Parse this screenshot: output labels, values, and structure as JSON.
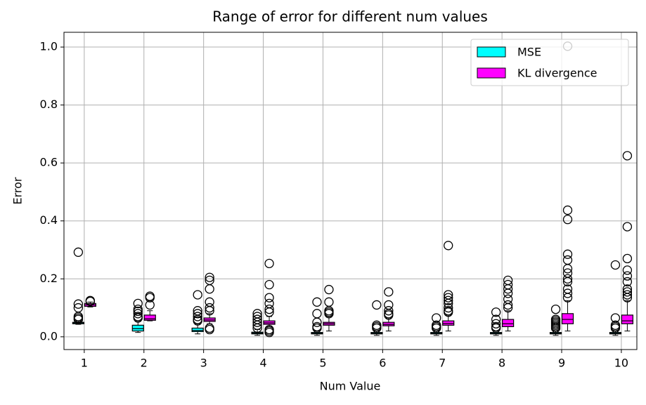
{
  "chart_data": {
    "type": "boxplot",
    "title": "Range of error for different num values",
    "xlabel": "Num Value",
    "ylabel": "Error",
    "xlim": [
      0.66,
      10.26
    ],
    "xticks": [
      1,
      2,
      3,
      4,
      5,
      6,
      7,
      8,
      9,
      10
    ],
    "ylim": [
      -0.044,
      1.051
    ],
    "yticks": [
      {
        "value": 0,
        "label": "0.0"
      },
      0.2,
      0.4,
      0.6,
      0.8,
      {
        "value": 1,
        "label": "1.0"
      }
    ],
    "grid": true,
    "legend": "upper right",
    "series": [
      {
        "name": "MSE",
        "color": "#00ffff",
        "boxes": [
          {
            "whislo": 0.043,
            "q1": 0.045,
            "med": 0.048,
            "q3": 0.05,
            "whishi": 0.055,
            "fliers": [
              0.292,
              0.113,
              0.1,
              0.07,
              0.065,
              0.06
            ]
          },
          {
            "whislo": 0.015,
            "q1": 0.02,
            "med": 0.028,
            "q3": 0.04,
            "whishi": 0.055,
            "fliers": [
              0.115,
              0.095,
              0.088,
              0.08,
              0.07,
              0.065
            ]
          },
          {
            "whislo": 0.01,
            "q1": 0.018,
            "med": 0.022,
            "q3": 0.03,
            "whishi": 0.045,
            "fliers": [
              0.145,
              0.09,
              0.08,
              0.07,
              0.06,
              0.055
            ]
          },
          {
            "whislo": 0.005,
            "q1": 0.01,
            "med": 0.013,
            "q3": 0.016,
            "whishi": 0.025,
            "fliers": [
              0.08,
              0.07,
              0.06,
              0.05,
              0.04,
              0.03
            ]
          },
          {
            "whislo": 0.005,
            "q1": 0.01,
            "med": 0.012,
            "q3": 0.015,
            "whishi": 0.02,
            "fliers": [
              0.12,
              0.08,
              0.05,
              0.035,
              0.03
            ]
          },
          {
            "whislo": 0.005,
            "q1": 0.01,
            "med": 0.012,
            "q3": 0.015,
            "whishi": 0.02,
            "fliers": [
              0.11,
              0.04,
              0.035,
              0.03
            ]
          },
          {
            "whislo": 0.005,
            "q1": 0.01,
            "med": 0.012,
            "q3": 0.015,
            "whishi": 0.02,
            "fliers": [
              0.065,
              0.04,
              0.035,
              0.03
            ]
          },
          {
            "whislo": 0.005,
            "q1": 0.01,
            "med": 0.012,
            "q3": 0.015,
            "whishi": 0.02,
            "fliers": [
              0.085,
              0.06,
              0.045,
              0.035,
              0.03
            ]
          },
          {
            "whislo": 0.005,
            "q1": 0.01,
            "med": 0.012,
            "q3": 0.015,
            "whishi": 0.02,
            "fliers": [
              0.095,
              0.06,
              0.055,
              0.05,
              0.045,
              0.04,
              0.035,
              0.03
            ]
          },
          {
            "whislo": 0.005,
            "q1": 0.01,
            "med": 0.012,
            "q3": 0.015,
            "whishi": 0.02,
            "fliers": [
              0.248,
              0.065,
              0.04,
              0.035,
              0.03
            ]
          }
        ]
      },
      {
        "name": "KL divergence",
        "color": "#ff00ff",
        "boxes": [
          {
            "whislo": 0.103,
            "q1": 0.105,
            "med": 0.11,
            "q3": 0.115,
            "whishi": 0.12,
            "fliers": [
              0.122,
              0.125
            ]
          },
          {
            "whislo": 0.055,
            "q1": 0.057,
            "med": 0.062,
            "q3": 0.075,
            "whishi": 0.09,
            "fliers": [
              0.14,
              0.135,
              0.11
            ]
          },
          {
            "whislo": 0.045,
            "q1": 0.053,
            "med": 0.058,
            "q3": 0.065,
            "whishi": 0.08,
            "fliers": [
              0.205,
              0.195,
              0.165,
              0.12,
              0.1,
              0.09,
              0.03,
              0.025
            ]
          },
          {
            "whislo": 0.035,
            "q1": 0.043,
            "med": 0.048,
            "q3": 0.055,
            "whishi": 0.07,
            "fliers": [
              0.253,
              0.18,
              0.135,
              0.115,
              0.095,
              0.085,
              0.025,
              0.02,
              0.015
            ]
          },
          {
            "whislo": 0.02,
            "q1": 0.04,
            "med": 0.045,
            "q3": 0.05,
            "whishi": 0.07,
            "fliers": [
              0.163,
              0.12,
              0.09,
              0.085,
              0.08
            ]
          },
          {
            "whislo": 0.02,
            "q1": 0.038,
            "med": 0.043,
            "q3": 0.05,
            "whishi": 0.065,
            "fliers": [
              0.155,
              0.11,
              0.09,
              0.08,
              0.075
            ]
          },
          {
            "whislo": 0.02,
            "q1": 0.04,
            "med": 0.046,
            "q3": 0.055,
            "whishi": 0.075,
            "fliers": [
              0.315,
              0.145,
              0.135,
              0.125,
              0.115,
              0.1,
              0.09,
              0.085
            ]
          },
          {
            "whislo": 0.02,
            "q1": 0.035,
            "med": 0.045,
            "q3": 0.06,
            "whishi": 0.09,
            "fliers": [
              0.195,
              0.18,
              0.165,
              0.15,
              0.13,
              0.11,
              0.1
            ]
          },
          {
            "whislo": 0.02,
            "q1": 0.045,
            "med": 0.06,
            "q3": 0.08,
            "whishi": 0.125,
            "fliers": [
              1.003,
              0.437,
              0.405,
              0.285,
              0.265,
              0.235,
              0.22,
              0.2,
              0.19,
              0.165,
              0.15,
              0.135
            ]
          },
          {
            "whislo": 0.02,
            "q1": 0.045,
            "med": 0.055,
            "q3": 0.075,
            "whishi": 0.125,
            "fliers": [
              0.625,
              0.38,
              0.27,
              0.23,
              0.21,
              0.19,
              0.165,
              0.155,
              0.145,
              0.135
            ]
          }
        ]
      }
    ]
  }
}
